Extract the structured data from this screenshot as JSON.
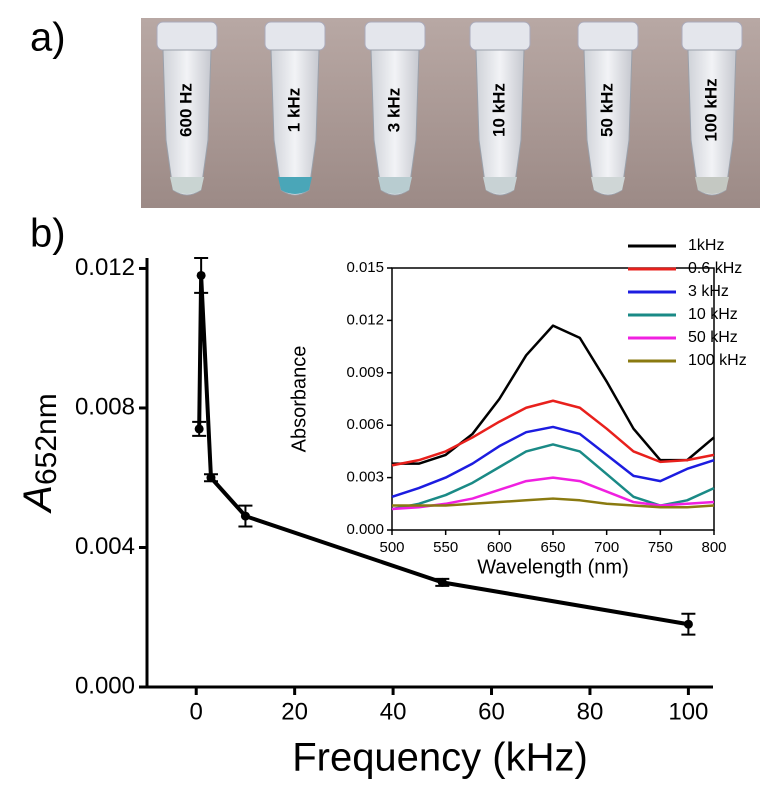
{
  "panel_labels": [
    "a)",
    "b)"
  ],
  "photo": {
    "tube_labels": [
      "600 Hz",
      "1 kHz",
      "3 kHz",
      "10 kHz",
      "50 kHz",
      "100 kHz"
    ]
  },
  "chart_data": [
    {
      "type": "line",
      "x_label": "Frequency (kHz)",
      "y_label": "A",
      "y_label_sub": "652nm",
      "x": [
        0.6,
        1,
        3,
        10,
        50,
        100
      ],
      "values": [
        0.0074,
        0.0118,
        0.006,
        0.0049,
        0.003,
        0.0018
      ],
      "errors": [
        0.0002,
        0.0005,
        0.0001,
        0.0003,
        0.0001,
        0.0003
      ],
      "color": "#000000",
      "xlim": [
        -10,
        105
      ],
      "xticks": [
        0,
        20,
        40,
        60,
        80,
        100
      ],
      "ylim": [
        0,
        0.0123
      ],
      "yticks": [
        {
          "value": 0,
          "label": "0.000"
        },
        0.004,
        0.008,
        0.012
      ]
    },
    {
      "type": "line",
      "x_label": "Wavelength (nm)",
      "y_label": "Absorbance",
      "x": [
        500,
        525,
        550,
        575,
        600,
        625,
        650,
        675,
        700,
        725,
        750,
        775,
        800
      ],
      "series": [
        {
          "name": "1kHz",
          "color": "#000000",
          "values": [
            0.0038,
            0.0038,
            0.0043,
            0.0055,
            0.0075,
            0.01,
            0.0117,
            0.011,
            0.0085,
            0.0058,
            0.004,
            0.004,
            0.0053
          ]
        },
        {
          "name": "0.6 kHz",
          "color": "#e8201c",
          "values": [
            0.0037,
            0.004,
            0.0045,
            0.0053,
            0.0062,
            0.007,
            0.0074,
            0.007,
            0.0058,
            0.0045,
            0.0039,
            0.004,
            0.0043
          ]
        },
        {
          "name": "3 kHz",
          "color": "#1c1ce0",
          "values": [
            0.0019,
            0.0024,
            0.003,
            0.0038,
            0.0048,
            0.0056,
            0.0059,
            0.0055,
            0.0043,
            0.0031,
            0.0028,
            0.0035,
            0.004
          ]
        },
        {
          "name": "10 kHz",
          "color": "#1a8a86",
          "values": [
            0.0012,
            0.0015,
            0.002,
            0.0027,
            0.0036,
            0.0045,
            0.0049,
            0.0045,
            0.0032,
            0.0019,
            0.0014,
            0.0017,
            0.0024
          ]
        },
        {
          "name": "50 kHz",
          "color": "#f020e0",
          "values": [
            0.0012,
            0.0013,
            0.0015,
            0.0018,
            0.0023,
            0.0028,
            0.003,
            0.0028,
            0.0022,
            0.0016,
            0.0014,
            0.0015,
            0.0016
          ]
        },
        {
          "name": "100 kHz",
          "color": "#8a7a10",
          "values": [
            0.0014,
            0.0014,
            0.0014,
            0.0015,
            0.0016,
            0.0017,
            0.0018,
            0.0017,
            0.0015,
            0.0014,
            0.0013,
            0.0013,
            0.0014
          ]
        }
      ],
      "xlim": [
        500,
        800
      ],
      "xticks": [
        500,
        550,
        600,
        650,
        700,
        750,
        800
      ],
      "ylim": [
        0,
        0.015
      ],
      "yticks": [
        {
          "value": 0,
          "label": "0.000"
        },
        0.003,
        0.006,
        0.009,
        0.012,
        0.015
      ],
      "legend": "upper-right"
    }
  ]
}
